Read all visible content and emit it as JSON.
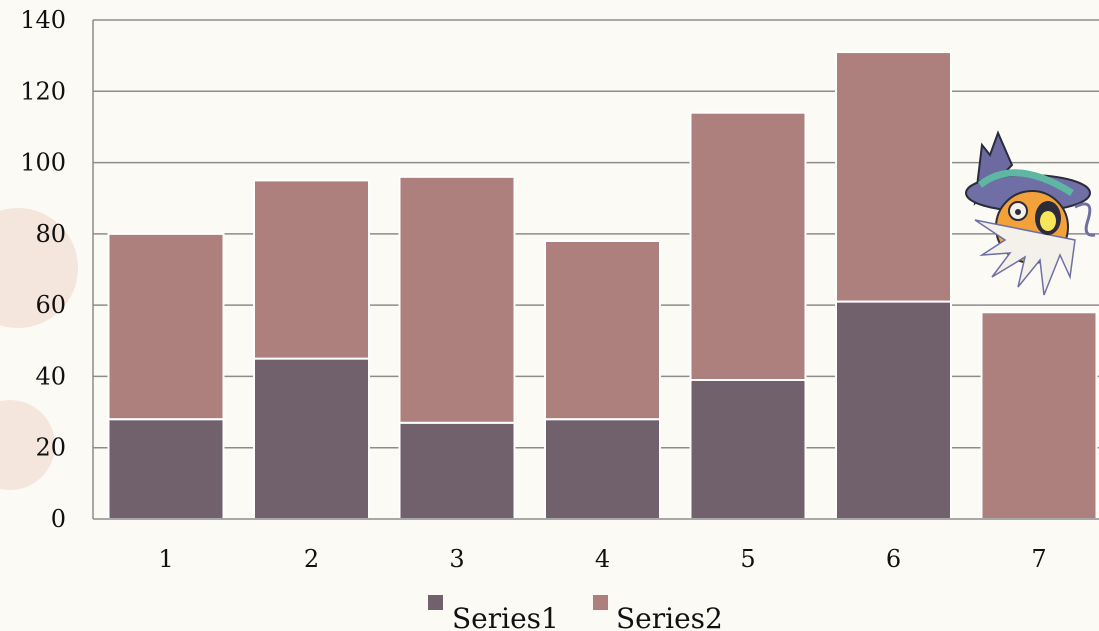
{
  "colors": {
    "background": "#fcfaf5",
    "series1": "#71616d",
    "series2": "#ad7f7d",
    "gridline": "#8c8c8c",
    "decor_blob": "#f4e6dd"
  },
  "chart_data": {
    "type": "bar",
    "stacked": true,
    "categories": [
      "1",
      "2",
      "3",
      "4",
      "5",
      "6",
      "7"
    ],
    "series": [
      {
        "name": "Series1",
        "values": [
          28,
          45,
          27,
          28,
          39,
          61,
          0
        ]
      },
      {
        "name": "Series2",
        "values": [
          52,
          50,
          69,
          50,
          75,
          70,
          58
        ]
      }
    ],
    "ylim": [
      0,
      140
    ],
    "yticks": [
      "0",
      "20",
      "40",
      "60",
      "80",
      "100",
      "120",
      "140"
    ],
    "grid": true,
    "legend_position": "bottom",
    "title": "",
    "xlabel": "",
    "ylabel": ""
  },
  "decoration": {
    "mascot": "wizard-cat-icon"
  }
}
